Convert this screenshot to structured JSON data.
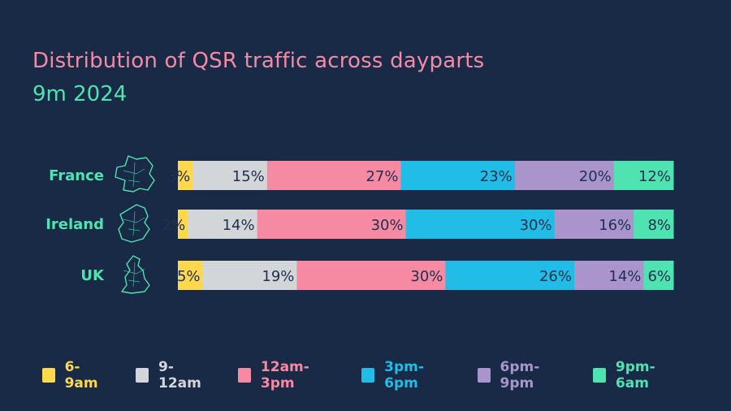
{
  "chart_data": {
    "type": "bar",
    "orientation": "horizontal",
    "stacked": true,
    "title": "Distribution of QSR traffic across dayparts",
    "subtitle": "9m 2024",
    "categories": [
      "France",
      "Ireland",
      "UK"
    ],
    "unit": "%",
    "series": [
      {
        "name": "6-9am",
        "color": "#ffd84d",
        "values": [
          3,
          2,
          5
        ]
      },
      {
        "name": "9-12am",
        "color": "#d3d6d8",
        "values": [
          15,
          14,
          19
        ]
      },
      {
        "name": "12am-3pm",
        "color": "#f78aa3",
        "values": [
          27,
          30,
          30
        ]
      },
      {
        "name": "3pm-6pm",
        "color": "#21bde6",
        "values": [
          23,
          30,
          26
        ]
      },
      {
        "name": "6pm-9pm",
        "color": "#a995cc",
        "values": [
          20,
          16,
          14
        ]
      },
      {
        "name": "9pm-6am",
        "color": "#4fe3b1",
        "values": [
          12,
          8,
          6
        ]
      }
    ],
    "legend_position": "bottom",
    "grid": false
  },
  "colors": {
    "background": "#182a45",
    "title": "#f48aa6",
    "subtitle": "#4fe3b1",
    "category_label": "#4fe3b1",
    "data_label": "#22304f"
  },
  "icons": [
    "france-map-icon",
    "ireland-map-icon",
    "uk-map-icon"
  ]
}
